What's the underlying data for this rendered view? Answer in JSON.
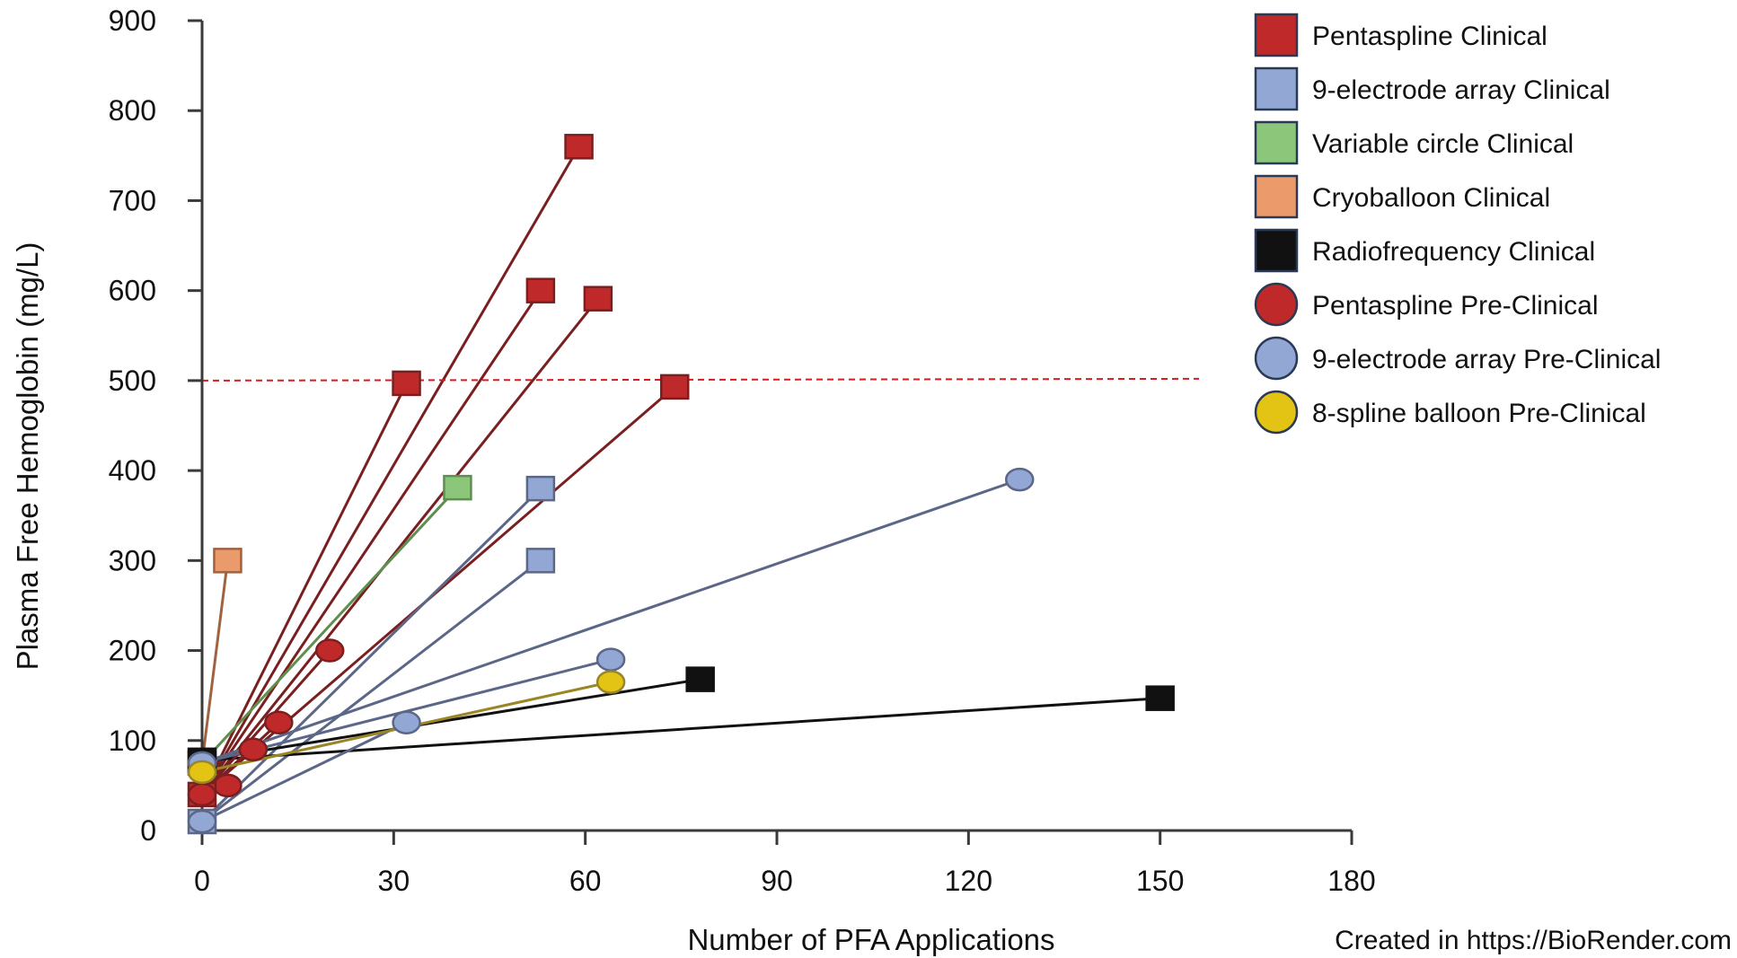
{
  "chart_data": {
    "type": "scatter",
    "xlabel": "Number of PFA Applications",
    "ylabel": "Plasma Free Hemoglobin (mg/L)",
    "xlim": [
      0,
      180
    ],
    "ylim": [
      0,
      900
    ],
    "xticks": [
      0,
      30,
      60,
      90,
      120,
      150,
      180
    ],
    "yticks": [
      0,
      100,
      200,
      300,
      400,
      500,
      600,
      700,
      800,
      900
    ],
    "grid": false,
    "legend_position": "top-right",
    "threshold": {
      "y": 500,
      "color": "#e8141b",
      "style": "dashed"
    },
    "series": [
      {
        "name": "Pentaspline Clinical",
        "marker": "square",
        "fill": "#c0292a",
        "line": "#7a1f20",
        "segments": [
          [
            {
              "x": 0,
              "y": 40
            },
            {
              "x": 32,
              "y": 497
            }
          ],
          [
            {
              "x": 0,
              "y": 40
            },
            {
              "x": 59,
              "y": 760
            }
          ],
          [
            {
              "x": 0,
              "y": 40
            },
            {
              "x": 53,
              "y": 600
            }
          ],
          [
            {
              "x": 0,
              "y": 40
            },
            {
              "x": 62,
              "y": 591
            }
          ],
          [
            {
              "x": 0,
              "y": 40
            },
            {
              "x": 74,
              "y": 493
            }
          ]
        ]
      },
      {
        "name": "9-electrode array Clinical",
        "marker": "square",
        "fill": "#93a7d4",
        "line": "#5c6788",
        "segments": [
          [
            {
              "x": 0,
              "y": 10
            },
            {
              "x": 53,
              "y": 380
            }
          ],
          [
            {
              "x": 0,
              "y": 10
            },
            {
              "x": 53,
              "y": 300
            }
          ]
        ]
      },
      {
        "name": "Variable circle Clinical",
        "marker": "square",
        "fill": "#8bc67a",
        "line": "#5f8f4e",
        "segments": [
          [
            {
              "x": 0,
              "y": 75
            },
            {
              "x": 40,
              "y": 381
            }
          ]
        ]
      },
      {
        "name": "Cryoballoon Clinical",
        "marker": "square",
        "fill": "#eb9b6b",
        "line": "#a0623f",
        "segments": [
          [
            {
              "x": 0,
              "y": 75
            },
            {
              "x": 4,
              "y": 300
            }
          ]
        ]
      },
      {
        "name": "Radiofrequency Clinical",
        "marker": "square",
        "fill": "#111111",
        "line": "#111111",
        "segments": [
          [
            {
              "x": 0,
              "y": 78
            },
            {
              "x": 78,
              "y": 168
            }
          ],
          [
            {
              "x": 0,
              "y": 78
            },
            {
              "x": 150,
              "y": 147
            }
          ]
        ]
      },
      {
        "name": "Pentaspline Pre-Clinical",
        "marker": "circle",
        "fill": "#c0292a",
        "line": "#7a1f20",
        "segments": [
          [
            {
              "x": 0,
              "y": 40
            },
            {
              "x": 4,
              "y": 50
            }
          ],
          [
            {
              "x": 0,
              "y": 40
            },
            {
              "x": 8,
              "y": 90
            }
          ],
          [
            {
              "x": 0,
              "y": 40
            },
            {
              "x": 12,
              "y": 120
            }
          ],
          [
            {
              "x": 0,
              "y": 40
            },
            {
              "x": 20,
              "y": 200
            }
          ]
        ]
      },
      {
        "name": "9-electrode array Pre-Clinical",
        "marker": "circle",
        "fill": "#93a7d4",
        "line": "#5c6788",
        "segments": [
          [
            {
              "x": 0,
              "y": 10
            },
            {
              "x": 32,
              "y": 120
            }
          ],
          [
            {
              "x": 0,
              "y": 75
            },
            {
              "x": 64,
              "y": 190
            }
          ],
          [
            {
              "x": 0,
              "y": 75
            },
            {
              "x": 128,
              "y": 390
            }
          ]
        ]
      },
      {
        "name": "8-spline balloon Pre-Clinical",
        "marker": "circle",
        "fill": "#e3c414",
        "line": "#9b8625",
        "segments": [
          [
            {
              "x": 0,
              "y": 65
            },
            {
              "x": 64,
              "y": 165
            }
          ]
        ]
      }
    ]
  },
  "credit": "Created in  https://BioRender.com"
}
